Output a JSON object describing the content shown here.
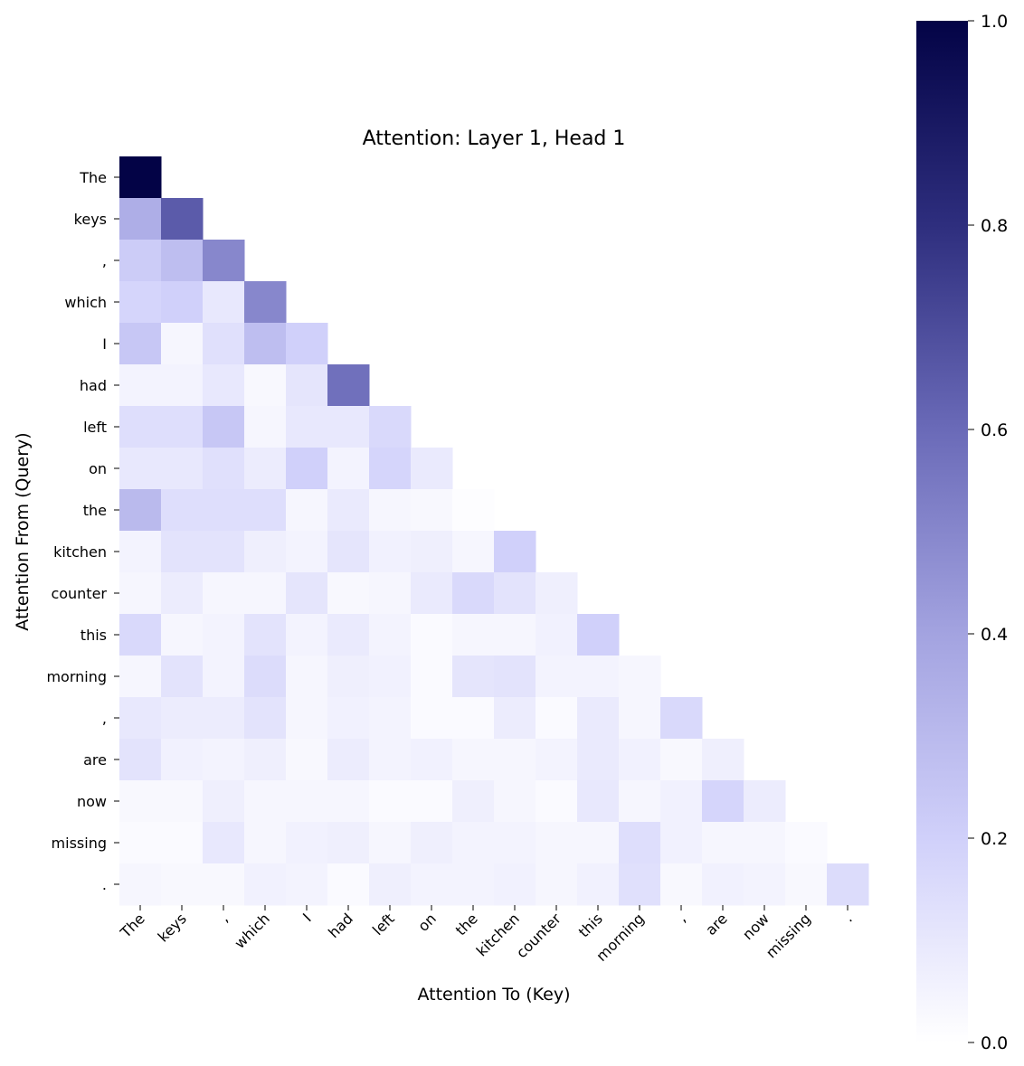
{
  "chart_data": {
    "type": "heatmap",
    "title": "Attention: Layer 1, Head 1",
    "xlabel": "Attention To (Key)",
    "ylabel": "Attention From (Query)",
    "x_tokens": [
      "The",
      "keys",
      ",",
      "which",
      "I",
      "had",
      "left",
      "on",
      "the",
      "kitchen",
      "counter",
      "this",
      "morning",
      ",",
      "are",
      "now",
      "missing",
      "."
    ],
    "y_tokens": [
      "The",
      "keys",
      ",",
      "which",
      "I",
      "had",
      "left",
      "on",
      "the",
      "kitchen",
      "counter",
      "this",
      "morning",
      ",",
      "are",
      "now",
      "missing",
      "."
    ],
    "masked": "upper-triangle",
    "values": [
      [
        1.0
      ],
      [
        0.35,
        0.65
      ],
      [
        0.22,
        0.28,
        0.5
      ],
      [
        0.18,
        0.2,
        0.1,
        0.5
      ],
      [
        0.24,
        0.04,
        0.13,
        0.28,
        0.2
      ],
      [
        0.05,
        0.05,
        0.1,
        0.03,
        0.11,
        0.58
      ],
      [
        0.14,
        0.14,
        0.24,
        0.04,
        0.1,
        0.1,
        0.16
      ],
      [
        0.1,
        0.1,
        0.13,
        0.08,
        0.2,
        0.05,
        0.18,
        0.09
      ],
      [
        0.3,
        0.14,
        0.14,
        0.14,
        0.04,
        0.09,
        0.04,
        0.03,
        0.01
      ],
      [
        0.05,
        0.12,
        0.12,
        0.07,
        0.05,
        0.11,
        0.06,
        0.07,
        0.04,
        0.2
      ],
      [
        0.04,
        0.08,
        0.04,
        0.04,
        0.11,
        0.03,
        0.04,
        0.09,
        0.16,
        0.12,
        0.07
      ],
      [
        0.16,
        0.04,
        0.05,
        0.12,
        0.05,
        0.09,
        0.05,
        0.02,
        0.04,
        0.04,
        0.06,
        0.2
      ],
      [
        0.04,
        0.12,
        0.05,
        0.15,
        0.04,
        0.07,
        0.06,
        0.02,
        0.11,
        0.12,
        0.05,
        0.05,
        0.04
      ],
      [
        0.1,
        0.08,
        0.08,
        0.12,
        0.04,
        0.06,
        0.05,
        0.02,
        0.02,
        0.08,
        0.02,
        0.09,
        0.04,
        0.16
      ],
      [
        0.12,
        0.06,
        0.05,
        0.07,
        0.03,
        0.08,
        0.05,
        0.06,
        0.04,
        0.04,
        0.05,
        0.09,
        0.06,
        0.03,
        0.07
      ],
      [
        0.03,
        0.03,
        0.07,
        0.04,
        0.04,
        0.04,
        0.02,
        0.02,
        0.07,
        0.04,
        0.02,
        0.1,
        0.04,
        0.06,
        0.18,
        0.08
      ],
      [
        0.02,
        0.02,
        0.1,
        0.04,
        0.06,
        0.07,
        0.04,
        0.07,
        0.05,
        0.05,
        0.04,
        0.04,
        0.14,
        0.06,
        0.04,
        0.04,
        0.02
      ],
      [
        0.04,
        0.03,
        0.03,
        0.06,
        0.05,
        0.02,
        0.07,
        0.05,
        0.05,
        0.06,
        0.04,
        0.06,
        0.13,
        0.03,
        0.06,
        0.05,
        0.03,
        0.15
      ]
    ],
    "colorbar": {
      "vmin": 0.0,
      "vmax": 1.0,
      "ticks": [
        0.0,
        0.2,
        0.4,
        0.6,
        0.8,
        1.0
      ],
      "tick_labels": [
        "0.0",
        "0.2",
        "0.4",
        "0.6",
        "0.8",
        "1.0"
      ]
    },
    "colormap": [
      "#ffffff",
      "#d0d0fa",
      "#a3a3e0",
      "#6a6ab8",
      "#2e2e7e",
      "#030346"
    ]
  }
}
